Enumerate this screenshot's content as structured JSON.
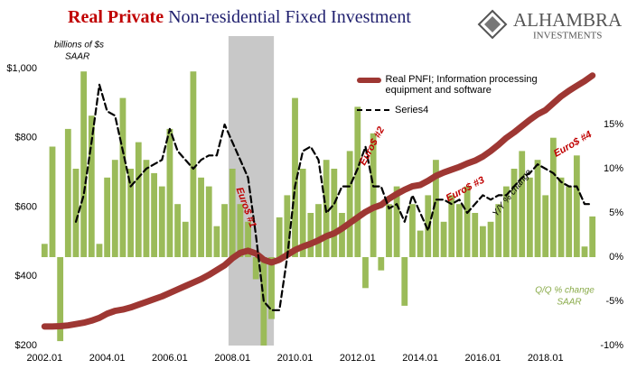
{
  "chart_data": {
    "type": "combo",
    "title": {
      "part1": "Real Private",
      "part2": "Non-residential Fixed Investment"
    },
    "logo": {
      "name": "ALHAMBRA",
      "sub": "INVESTMENTS"
    },
    "annotations": {
      "units": [
        "billions of $s",
        "SAAR"
      ],
      "euro1": "Euro$ #1",
      "euro2": "Euro$ #2",
      "euro3": "Euro$ #3",
      "euro4": "Euro$ #4",
      "yoy": "Y/Y % change",
      "qoq": [
        "Q/Q % change",
        "SAAR"
      ]
    },
    "categories": [
      "2002.01",
      null,
      null,
      null,
      null,
      null,
      null,
      null,
      "2004.01",
      null,
      null,
      null,
      null,
      null,
      null,
      null,
      "2006.01",
      null,
      null,
      null,
      null,
      null,
      null,
      null,
      "2008.01",
      null,
      null,
      null,
      null,
      null,
      null,
      null,
      "2010.01",
      null,
      null,
      null,
      null,
      null,
      null,
      null,
      "2012.01",
      null,
      null,
      null,
      null,
      null,
      null,
      null,
      "2014.01",
      null,
      null,
      null,
      null,
      null,
      null,
      null,
      "2016.01",
      null,
      null,
      null,
      null,
      null,
      null,
      null,
      "2018.01",
      null,
      null,
      null,
      null,
      null,
      null
    ],
    "shade": [
      23.5,
      29.3
    ],
    "series": [
      {
        "type": "bar",
        "axis": "y2",
        "color": "#9bbb59",
        "values": [
          1.5,
          12.5,
          -9.5,
          14.5,
          10,
          21,
          16,
          1.5,
          9,
          11,
          18,
          10,
          13,
          11,
          9.5,
          8,
          14.5,
          6,
          4,
          21,
          9,
          8,
          3.5,
          6,
          10,
          6,
          4,
          -2.5,
          -10,
          -7,
          4.5,
          7,
          18,
          10,
          5,
          6,
          11,
          10,
          5,
          12,
          17,
          -3.5,
          14,
          -1.5,
          6,
          8,
          -5.5,
          6,
          3,
          7,
          11,
          4,
          7,
          6,
          8,
          5,
          3.5,
          4,
          6,
          8,
          10,
          12,
          9,
          11,
          7,
          13.5,
          9,
          8,
          11.5,
          1.2,
          4.6
        ]
      },
      {
        "type": "line",
        "axis": "y",
        "name": "Real PNFI; Information processing equipment and software",
        "color": "#9e3733",
        "values": [
          255,
          255,
          256,
          258,
          262,
          266,
          272,
          280,
          292,
          300,
          304,
          310,
          318,
          326,
          334,
          342,
          352,
          362,
          372,
          382,
          392,
          404,
          418,
          432,
          452,
          468,
          474,
          466,
          448,
          440,
          448,
          462,
          476,
          486,
          494,
          504,
          516,
          524,
          538,
          554,
          570,
          586,
          598,
          606,
          624,
          638,
          650,
          660,
          664,
          676,
          690,
          700,
          708,
          716,
          726,
          734,
          746,
          762,
          780,
          800,
          816,
          834,
          852,
          868,
          880,
          900,
          920,
          936,
          950,
          964,
          980
        ]
      },
      {
        "type": "dashed",
        "axis": "y2",
        "name": "Series4",
        "color": "#000000",
        "values": [
          null,
          null,
          null,
          null,
          4,
          7,
          13,
          19.5,
          16.5,
          16,
          12,
          8,
          9,
          10,
          10.5,
          11,
          14.5,
          12,
          11,
          10,
          11,
          11.5,
          11.5,
          15,
          13,
          11,
          9,
          2.5,
          -5,
          -6,
          -6,
          0,
          8,
          12,
          12.5,
          11,
          5,
          6,
          8,
          8,
          10,
          12.5,
          8,
          8,
          5.5,
          6,
          4,
          7,
          5,
          3,
          6.5,
          6.5,
          6,
          6.5,
          5,
          6,
          7,
          6.5,
          7,
          7,
          8,
          9,
          9.5,
          10.5,
          10,
          9.5,
          8.5,
          8,
          8,
          6,
          6
        ]
      }
    ],
    "ylim": [
      200,
      1094
    ],
    "yticks": [
      {
        "value": 200,
        "label": "$200"
      },
      {
        "value": 400,
        "label": "$400"
      },
      {
        "value": 600,
        "label": "$600"
      },
      {
        "value": 800,
        "label": "$800"
      },
      {
        "value": 1000,
        "label": "$1,000"
      }
    ],
    "y2lim": [
      -10,
      25
    ],
    "y2ticks": [
      {
        "value": -10,
        "label": "-10%"
      },
      {
        "value": -5,
        "label": "-5%"
      },
      {
        "value": 0,
        "label": "0%"
      },
      {
        "value": 5,
        "label": "5%"
      },
      {
        "value": 10,
        "label": "10%"
      },
      {
        "value": 15,
        "label": "15%"
      }
    ]
  }
}
